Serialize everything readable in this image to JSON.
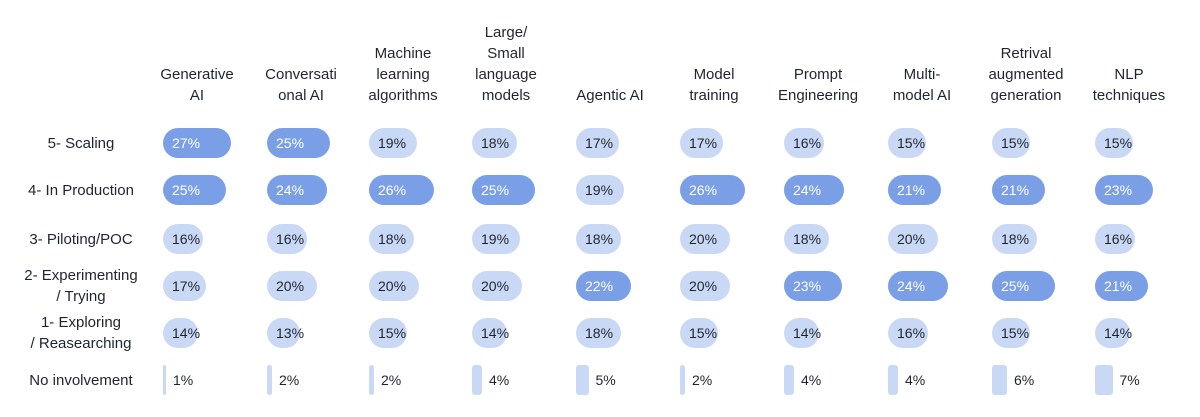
{
  "chart_data": {
    "type": "table",
    "columns": [
      "Generative AI",
      "Conversational AI",
      "Machine learning algorithms",
      "Large/ Small language models",
      "Agentic AI",
      "Model training",
      "Prompt Engineering",
      "Multi- model AI",
      "Retrival augmented generation",
      "NLP techniques"
    ],
    "columns_display": [
      [
        "Generative",
        "AI"
      ],
      [
        "Conversati",
        "onal AI"
      ],
      [
        "Machine",
        "learning",
        "algorithms"
      ],
      [
        "Large/",
        "Small",
        "language",
        "models"
      ],
      [
        "Agentic AI"
      ],
      [
        "Model",
        "training"
      ],
      [
        "Prompt",
        "Engineering"
      ],
      [
        "Multi-",
        "model AI"
      ],
      [
        "Retrival",
        "augmented",
        "generation"
      ],
      [
        "NLP",
        "techniques"
      ]
    ],
    "rows": [
      "5- Scaling",
      "4- In Production",
      "3- Piloting/POC",
      "2- Experimenting / Trying",
      "1- Exploring / Reasearching",
      "No involvement"
    ],
    "rows_display": [
      [
        "5- Scaling"
      ],
      [
        "4- In Production"
      ],
      [
        "3- Piloting/POC"
      ],
      [
        "2- Experimenting",
        "/ Trying"
      ],
      [
        "1- Exploring",
        "/ Reasearching"
      ],
      [
        "No involvement"
      ]
    ],
    "values": [
      [
        27,
        25,
        19,
        18,
        17,
        17,
        16,
        15,
        15,
        15
      ],
      [
        25,
        24,
        26,
        25,
        19,
        26,
        24,
        21,
        21,
        23
      ],
      [
        16,
        16,
        18,
        19,
        18,
        20,
        18,
        20,
        18,
        16
      ],
      [
        17,
        20,
        20,
        20,
        22,
        20,
        23,
        24,
        25,
        21
      ],
      [
        14,
        13,
        15,
        14,
        18,
        15,
        14,
        16,
        15,
        14
      ],
      [
        1,
        2,
        2,
        4,
        5,
        2,
        4,
        4,
        6,
        7
      ]
    ],
    "value_suffix": "%",
    "colors": {
      "high": "#7b9fe6",
      "low": "#c9d9f5",
      "text_on_high": "#ffffff",
      "text_on_low": "#1f2430"
    }
  }
}
